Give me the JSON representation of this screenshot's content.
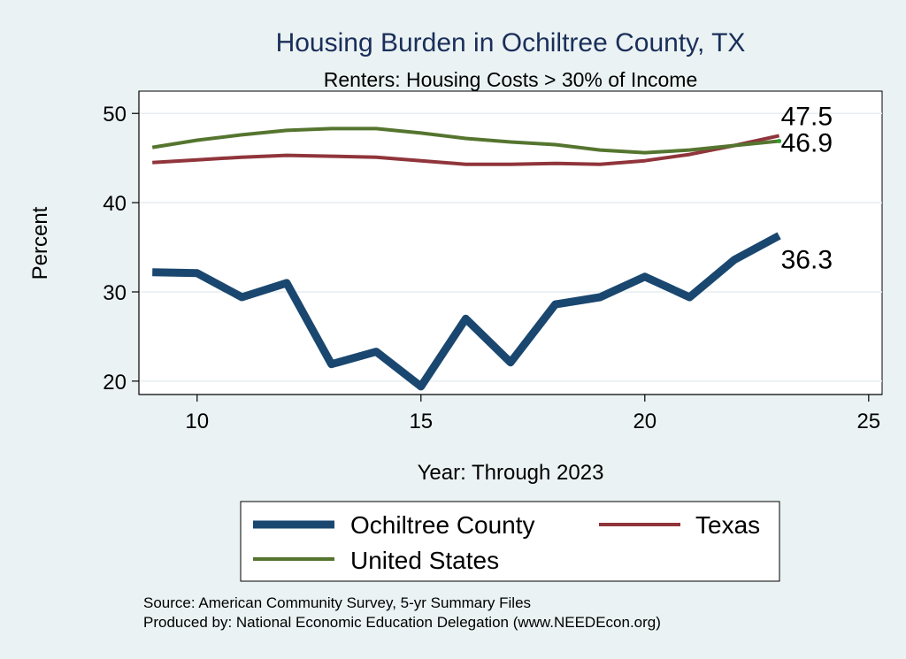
{
  "chart_data": {
    "type": "line",
    "title": "Housing Burden in Ochiltree County, TX",
    "subtitle": "Renters: Housing Costs > 30% of Income",
    "xlabel": "Year: Through 2023",
    "ylabel": "Percent",
    "xlim": [
      8.7,
      25.3
    ],
    "ylim": [
      18.5,
      52.5
    ],
    "xticks": [
      10,
      15,
      20,
      25
    ],
    "yticks": [
      20,
      30,
      40,
      50
    ],
    "grid": true,
    "legend_position": "bottom",
    "x": [
      9,
      10,
      11,
      12,
      13,
      14,
      15,
      16,
      17,
      18,
      19,
      20,
      21,
      22,
      23
    ],
    "series": [
      {
        "name": "Ochiltree County",
        "color": "#1a476f",
        "values": [
          32.2,
          32.1,
          29.4,
          31.0,
          21.9,
          23.3,
          19.4,
          27.0,
          22.1,
          28.6,
          29.4,
          31.7,
          29.4,
          33.6,
          36.3
        ],
        "end_label": "36.3"
      },
      {
        "name": "Texas",
        "color": "#90353b",
        "values": [
          44.5,
          44.8,
          45.1,
          45.3,
          45.2,
          45.1,
          44.7,
          44.3,
          44.3,
          44.4,
          44.3,
          44.7,
          45.4,
          46.4,
          47.5
        ],
        "end_label": "47.5"
      },
      {
        "name": "United States",
        "color": "#55752f",
        "values": [
          46.2,
          47.0,
          47.6,
          48.1,
          48.3,
          48.3,
          47.8,
          47.2,
          46.8,
          46.5,
          45.9,
          45.6,
          45.9,
          46.4,
          46.9
        ],
        "end_label": "46.9"
      }
    ],
    "source_lines": [
      "Source: American Community Survey, 5-yr Summary Files",
      "Produced by: National Economic Education Delegation (www.NEEDEcon.org)"
    ]
  }
}
